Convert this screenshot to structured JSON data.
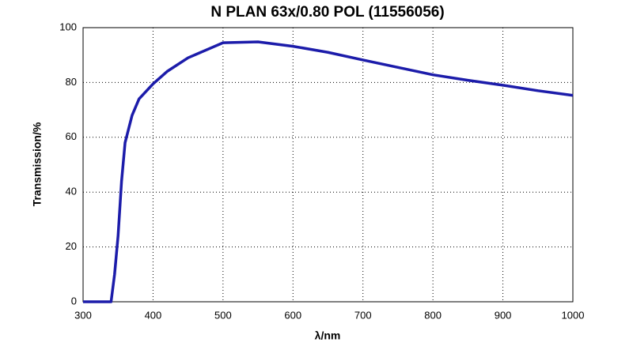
{
  "chart_data": {
    "type": "line",
    "title": "N PLAN 63x/0.80 POL (11556056)",
    "x_label": "λ/nm",
    "y_label": "Transmission/%",
    "x": [
      300,
      340,
      345,
      350,
      355,
      360,
      370,
      380,
      400,
      420,
      450,
      500,
      550,
      600,
      650,
      700,
      750,
      800,
      850,
      900,
      950,
      1000
    ],
    "series": [
      {
        "name": "N PLAN 63x/0.80 POL",
        "color": "#1c1caa",
        "values": [
          0,
          0,
          10,
          24,
          44,
          58,
          68,
          74,
          79.5,
          84,
          89,
          94.5,
          94.8,
          93.2,
          91,
          88.2,
          85.5,
          82.8,
          80.8,
          79,
          77,
          75.3
        ]
      }
    ],
    "xlim": [
      300,
      1000
    ],
    "xticks": [
      300,
      400,
      500,
      600,
      700,
      800,
      900,
      1000
    ],
    "ylim": [
      0,
      100
    ],
    "yticks": [
      0,
      20,
      40,
      60,
      80,
      100
    ],
    "grid": true
  }
}
